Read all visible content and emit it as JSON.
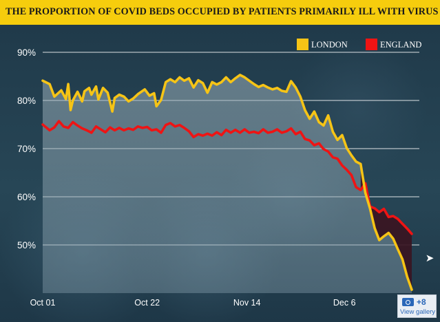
{
  "chart_data": {
    "type": "line",
    "title": "THE PROPORTION OF COVID BEDS OCCUPIED BY PATIENTS PRIMARILY ILL WITH VIRUS",
    "y_ticks": [
      "90%",
      "80%",
      "70%",
      "60%",
      "50%"
    ],
    "x_ticks": [
      "Oct 01",
      "Oct 22",
      "Nov 14",
      "Dec 6"
    ],
    "ylim": [
      40,
      90
    ],
    "grid": true,
    "legend_position": "top-right",
    "series": [
      {
        "name": "LONDON",
        "color": "#f6c416",
        "points": [
          [
            0,
            84.1
          ],
          [
            3,
            83.4
          ],
          [
            5,
            80.8
          ],
          [
            8,
            82.1
          ],
          [
            10,
            80.3
          ],
          [
            11,
            83.4
          ],
          [
            12,
            78.0
          ],
          [
            13,
            80.0
          ],
          [
            15,
            81.8
          ],
          [
            17,
            79.8
          ],
          [
            18,
            81.9
          ],
          [
            20,
            82.6
          ],
          [
            21,
            81.2
          ],
          [
            23,
            82.9
          ],
          [
            24,
            80.2
          ],
          [
            26,
            82.6
          ],
          [
            28,
            81.6
          ],
          [
            30,
            77.7
          ],
          [
            31,
            80.5
          ],
          [
            33,
            81.2
          ],
          [
            35,
            80.8
          ],
          [
            37,
            79.8
          ],
          [
            39,
            80.4
          ],
          [
            41,
            81.3
          ],
          [
            44,
            82.3
          ],
          [
            46,
            81.0
          ],
          [
            48,
            81.5
          ],
          [
            49,
            78.8
          ],
          [
            51,
            80.1
          ],
          [
            53,
            83.8
          ],
          [
            55,
            84.4
          ],
          [
            57,
            83.8
          ],
          [
            59,
            84.8
          ],
          [
            61,
            84.1
          ],
          [
            63,
            84.6
          ],
          [
            65,
            82.7
          ],
          [
            67,
            84.2
          ],
          [
            69,
            83.6
          ],
          [
            71,
            81.6
          ],
          [
            73,
            83.8
          ],
          [
            75,
            83.3
          ],
          [
            77,
            83.8
          ],
          [
            79,
            84.8
          ],
          [
            81,
            83.8
          ],
          [
            83,
            84.6
          ],
          [
            85,
            85.3
          ],
          [
            87,
            84.8
          ],
          [
            89,
            84.1
          ],
          [
            91,
            83.4
          ],
          [
            93,
            82.8
          ],
          [
            95,
            83.2
          ],
          [
            97,
            82.7
          ],
          [
            99,
            82.3
          ],
          [
            101,
            82.6
          ],
          [
            103,
            82.0
          ],
          [
            105,
            81.8
          ],
          [
            107,
            84.0
          ],
          [
            109,
            82.7
          ],
          [
            111,
            80.8
          ],
          [
            113,
            78.0
          ],
          [
            115,
            76.2
          ],
          [
            117,
            77.7
          ],
          [
            119,
            75.5
          ],
          [
            121,
            74.8
          ],
          [
            123,
            76.9
          ],
          [
            125,
            73.5
          ],
          [
            127,
            71.8
          ],
          [
            129,
            72.8
          ],
          [
            131,
            70.1
          ],
          [
            133,
            68.6
          ],
          [
            135,
            67.3
          ],
          [
            137,
            66.8
          ],
          [
            139,
            60.8
          ],
          [
            141,
            57.6
          ],
          [
            143,
            53.5
          ],
          [
            145,
            51.0
          ],
          [
            147,
            51.8
          ],
          [
            149,
            52.5
          ],
          [
            151,
            51.3
          ],
          [
            153,
            49.1
          ],
          [
            155,
            47.0
          ],
          [
            157,
            43.4
          ],
          [
            159,
            40.7
          ]
        ]
      },
      {
        "name": "ENGLAND",
        "color": "#ee1414",
        "points": [
          [
            0,
            75.0
          ],
          [
            3,
            73.8
          ],
          [
            5,
            74.4
          ],
          [
            7,
            75.7
          ],
          [
            9,
            74.6
          ],
          [
            11,
            74.3
          ],
          [
            13,
            75.5
          ],
          [
            15,
            74.8
          ],
          [
            17,
            74.2
          ],
          [
            19,
            73.8
          ],
          [
            21,
            73.3
          ],
          [
            23,
            74.6
          ],
          [
            25,
            74.0
          ],
          [
            27,
            73.4
          ],
          [
            29,
            74.4
          ],
          [
            31,
            73.8
          ],
          [
            33,
            74.3
          ],
          [
            35,
            73.8
          ],
          [
            37,
            74.2
          ],
          [
            39,
            73.9
          ],
          [
            41,
            74.6
          ],
          [
            43,
            74.3
          ],
          [
            45,
            74.5
          ],
          [
            47,
            73.8
          ],
          [
            49,
            74.0
          ],
          [
            51,
            73.3
          ],
          [
            53,
            74.9
          ],
          [
            55,
            75.3
          ],
          [
            57,
            74.6
          ],
          [
            59,
            74.9
          ],
          [
            61,
            74.3
          ],
          [
            63,
            73.6
          ],
          [
            65,
            72.4
          ],
          [
            67,
            73.0
          ],
          [
            69,
            72.7
          ],
          [
            71,
            73.1
          ],
          [
            73,
            72.7
          ],
          [
            75,
            73.4
          ],
          [
            77,
            72.8
          ],
          [
            79,
            73.9
          ],
          [
            81,
            73.3
          ],
          [
            83,
            73.9
          ],
          [
            85,
            73.3
          ],
          [
            87,
            74.0
          ],
          [
            89,
            73.3
          ],
          [
            91,
            73.5
          ],
          [
            93,
            73.2
          ],
          [
            95,
            74.0
          ],
          [
            97,
            73.3
          ],
          [
            99,
            73.5
          ],
          [
            101,
            74.0
          ],
          [
            103,
            73.3
          ],
          [
            105,
            73.6
          ],
          [
            107,
            74.2
          ],
          [
            109,
            73.0
          ],
          [
            111,
            73.5
          ],
          [
            113,
            72.0
          ],
          [
            115,
            71.7
          ],
          [
            117,
            70.7
          ],
          [
            119,
            71.1
          ],
          [
            121,
            69.9
          ],
          [
            123,
            69.4
          ],
          [
            125,
            68.2
          ],
          [
            127,
            67.9
          ],
          [
            129,
            66.5
          ],
          [
            131,
            65.6
          ],
          [
            133,
            64.5
          ],
          [
            135,
            62.0
          ],
          [
            137,
            61.4
          ],
          [
            139,
            62.8
          ],
          [
            141,
            58.0
          ],
          [
            143,
            57.6
          ],
          [
            145,
            56.8
          ],
          [
            147,
            57.5
          ],
          [
            149,
            55.8
          ],
          [
            151,
            56.0
          ],
          [
            153,
            55.4
          ],
          [
            155,
            54.4
          ],
          [
            157,
            53.4
          ],
          [
            159,
            52.3
          ]
        ]
      }
    ]
  },
  "colors": {
    "header_bg": "#f6cd0d",
    "london": "#f6c416",
    "england": "#ee1414"
  },
  "overlay": {
    "gallery_count": "+8",
    "gallery_label": "View gallery",
    "share_icon": "share-icon",
    "camera_icon": "camera-icon"
  }
}
